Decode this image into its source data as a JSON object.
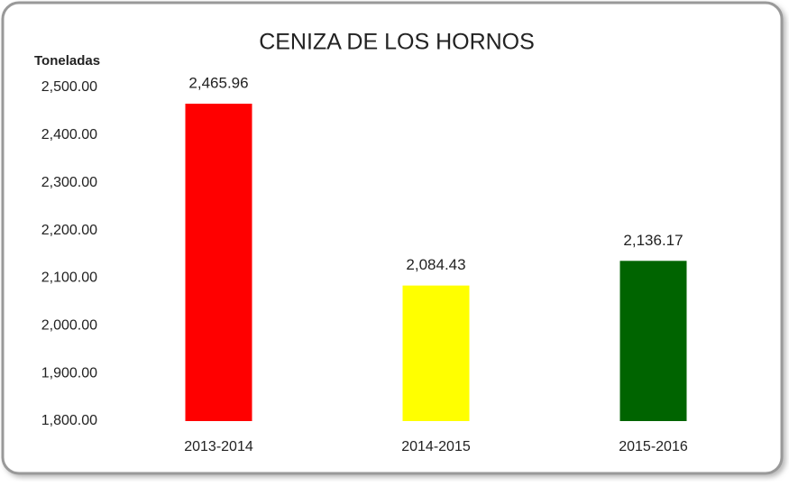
{
  "chart_data": {
    "type": "bar",
    "title": "CENIZA DE LOS HORNOS",
    "ylabel": "Toneladas",
    "categories": [
      "2013-2014",
      "2014-2015",
      "2015-2016"
    ],
    "values": [
      2465.96,
      2084.43,
      2136.17
    ],
    "value_labels": [
      "2,465.96",
      "2,084.43",
      "2,136.17"
    ],
    "colors": [
      "#ff0000",
      "#ffff00",
      "#006400"
    ],
    "ylim": [
      1800,
      2500
    ],
    "yticks": [
      {
        "value": 1800,
        "label": "1,800.00"
      },
      {
        "value": 1900,
        "label": "1,900.00"
      },
      {
        "value": 2000,
        "label": "2,000.00"
      },
      {
        "value": 2100,
        "label": "2,100.00"
      },
      {
        "value": 2200,
        "label": "2,200.00"
      },
      {
        "value": 2300,
        "label": "2,300.00"
      },
      {
        "value": 2400,
        "label": "2,400.00"
      },
      {
        "value": 2500,
        "label": "2,500.00"
      }
    ],
    "grid": false
  }
}
